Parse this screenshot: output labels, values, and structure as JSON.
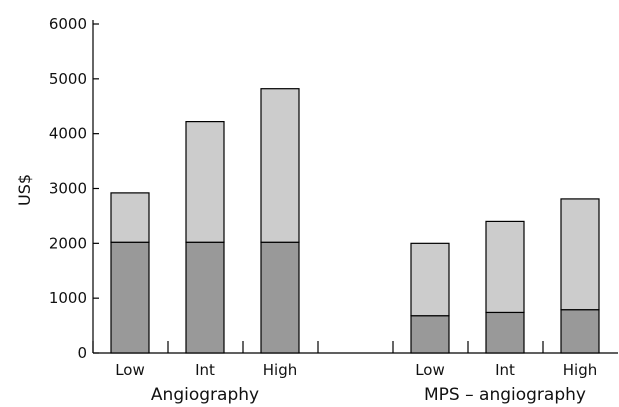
{
  "chart_data": {
    "type": "bar",
    "stacked": true,
    "ylabel": "US$",
    "ylim": [
      0,
      6000
    ],
    "yticks": [
      0,
      1000,
      2000,
      3000,
      4000,
      5000,
      6000
    ],
    "categories": [
      "Low",
      "Int",
      "High",
      "Low",
      "Int",
      "High"
    ],
    "groups": [
      {
        "label": "Angiography",
        "categories": [
          0,
          1,
          2
        ]
      },
      {
        "label": "MPS – angiography",
        "categories": [
          3,
          4,
          5
        ]
      }
    ],
    "series": [
      {
        "color": "#999999",
        "values": [
          2020,
          2020,
          2020,
          680,
          740,
          790
        ]
      },
      {
        "color": "#cccccc",
        "values": [
          900,
          2200,
          2800,
          1320,
          1660,
          2020
        ]
      }
    ],
    "grid": false,
    "legend": "none"
  }
}
